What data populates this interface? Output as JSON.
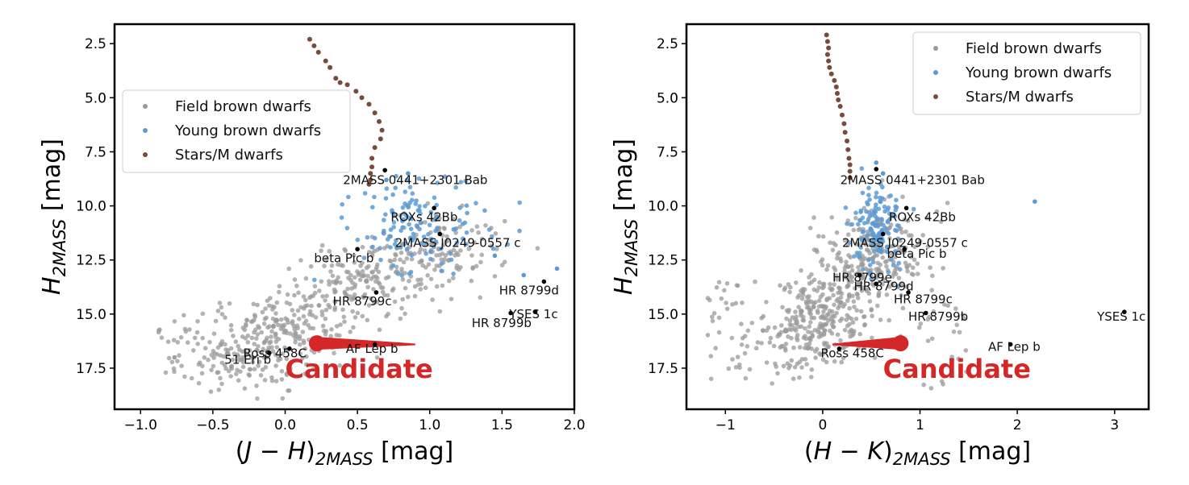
{
  "figure": {
    "y_label_main": "H",
    "y_label_sub": "2MASS",
    "y_label_unit": " [mag]"
  },
  "colors": {
    "field": "#9a9a9a",
    "young": "#5b9bd5",
    "stars": "#7a4a3a",
    "named": "#000000",
    "candidate": "#d62728"
  },
  "chart_data": [
    {
      "type": "scatter",
      "xlabel": "(J − H)2MASS [mag]",
      "xlabel_parts": {
        "open": "(",
        "a": "J",
        "op": " − ",
        "b": "H",
        "close": ")",
        "sub": "2MASS",
        "unit": " [mag]"
      },
      "ylabel": "H2MASS [mag]",
      "xlim": [
        -1.18,
        2.0
      ],
      "ylim": [
        19.4,
        1.6
      ],
      "y_inverted": true,
      "xticks": [
        "−1.0",
        "−0.5",
        "0.0",
        "0.5",
        "1.0",
        "1.5",
        "2.0"
      ],
      "xtick_values": [
        -1.0,
        -0.5,
        0.0,
        0.5,
        1.0,
        1.5,
        2.0
      ],
      "yticks": [
        "2.5",
        "5.0",
        "7.5",
        "10.0",
        "12.5",
        "15.0",
        "17.5"
      ],
      "ytick_values": [
        2.5,
        5.0,
        7.5,
        10.0,
        12.5,
        15.0,
        17.5
      ],
      "legend_position": "upper-left",
      "legend": [
        {
          "label": "Field brown dwarfs",
          "key": "field"
        },
        {
          "label": "Young brown dwarfs",
          "key": "young"
        },
        {
          "label": "Stars/M dwarfs",
          "key": "stars"
        }
      ],
      "stars_series": [
        [
          0.17,
          2.3
        ],
        [
          0.2,
          2.6
        ],
        [
          0.23,
          2.9
        ],
        [
          0.28,
          3.3
        ],
        [
          0.31,
          3.6
        ],
        [
          0.35,
          4.1
        ],
        [
          0.38,
          4.3
        ],
        [
          0.43,
          4.4
        ],
        [
          0.49,
          4.7
        ],
        [
          0.53,
          5.0
        ],
        [
          0.58,
          5.3
        ],
        [
          0.62,
          5.7
        ],
        [
          0.65,
          6.1
        ],
        [
          0.67,
          6.5
        ],
        [
          0.66,
          6.9
        ],
        [
          0.62,
          7.3
        ],
        [
          0.6,
          7.8
        ],
        [
          0.6,
          8.2
        ],
        [
          0.59,
          8.5
        ],
        [
          0.59,
          8.8
        ],
        [
          0.58,
          9.0
        ]
      ],
      "field_seed": 7,
      "young_seed": 11,
      "named_objects": [
        {
          "name": "2MASS 0441+2301 Bab",
          "x": 0.69,
          "y": 8.35,
          "lx": 0.4,
          "ly": 9.0
        },
        {
          "name": "ROXs 42Bb",
          "x": 1.03,
          "y": 10.1,
          "lx": 0.73,
          "ly": 10.7
        },
        {
          "name": "2MASS J0249-0557 c",
          "x": 1.07,
          "y": 11.3,
          "lx": 0.76,
          "ly": 11.9
        },
        {
          "name": "beta Pic b",
          "x": 0.5,
          "y": 12.0,
          "lx": 0.2,
          "ly": 12.6
        },
        {
          "name": "HR 8799d",
          "x": 1.79,
          "y": 13.5,
          "lx": 1.48,
          "ly": 14.1
        },
        {
          "name": "HR 8799c",
          "x": 0.63,
          "y": 14.0,
          "lx": 0.33,
          "ly": 14.6
        },
        {
          "name": "YSES 1c",
          "x": 1.73,
          "y": 14.9,
          "lx": 1.55,
          "ly": 15.2
        },
        {
          "name": "HR 8799b",
          "x": 1.56,
          "y": 14.95,
          "lx": 1.29,
          "ly": 15.6
        },
        {
          "name": "AF Lep b",
          "x": 0.62,
          "y": 16.4,
          "lx": 0.42,
          "ly": 16.8
        },
        {
          "name": "Ross 458C",
          "x": 0.03,
          "y": 16.6,
          "lx": -0.29,
          "ly": 17.0
        },
        {
          "name": "51 Eri b",
          "x": -0.11,
          "y": 16.8,
          "lx": -0.42,
          "ly": 17.3
        }
      ],
      "candidate": {
        "label": "Candidate",
        "x": 0.22,
        "y": 16.35,
        "tail_x": 0.9,
        "tail_y": 16.4,
        "lx": 0.0,
        "ly": 17.5
      }
    },
    {
      "type": "scatter",
      "xlabel": "(H − K)2MASS [mag]",
      "xlabel_parts": {
        "open": "(",
        "a": "H",
        "op": " − ",
        "b": "K",
        "close": ")",
        "sub": "2MASS",
        "unit": " [mag]"
      },
      "ylabel": "H2MASS [mag]",
      "xlim": [
        -1.4,
        3.35
      ],
      "ylim": [
        19.4,
        1.6
      ],
      "y_inverted": true,
      "xticks": [
        "−1",
        "0",
        "1",
        "2",
        "3"
      ],
      "xtick_values": [
        -1,
        0,
        1,
        2,
        3
      ],
      "yticks": [
        "2.5",
        "5.0",
        "7.5",
        "10.0",
        "12.5",
        "15.0",
        "17.5"
      ],
      "ytick_values": [
        2.5,
        5.0,
        7.5,
        10.0,
        12.5,
        15.0,
        17.5
      ],
      "legend_position": "upper-right",
      "legend": [
        {
          "label": "Field brown dwarfs",
          "key": "field"
        },
        {
          "label": "Young brown dwarfs",
          "key": "young"
        },
        {
          "label": "Stars/M dwarfs",
          "key": "stars"
        }
      ],
      "stars_series": [
        [
          0.04,
          2.1
        ],
        [
          0.05,
          2.4
        ],
        [
          0.06,
          2.7
        ],
        [
          0.05,
          3.0
        ],
        [
          0.06,
          3.3
        ],
        [
          0.07,
          3.6
        ],
        [
          0.09,
          3.9
        ],
        [
          0.12,
          4.2
        ],
        [
          0.14,
          4.5
        ],
        [
          0.15,
          4.8
        ],
        [
          0.16,
          5.1
        ],
        [
          0.18,
          5.4
        ],
        [
          0.2,
          5.8
        ],
        [
          0.22,
          6.2
        ],
        [
          0.23,
          6.6
        ],
        [
          0.25,
          7.0
        ],
        [
          0.26,
          7.4
        ],
        [
          0.27,
          7.8
        ],
        [
          0.28,
          8.1
        ],
        [
          0.28,
          8.4
        ],
        [
          0.28,
          8.7
        ]
      ],
      "field_seed": 23,
      "young_seed": 31,
      "named_objects": [
        {
          "name": "2MASS 0441+2301 Bab",
          "x": 0.55,
          "y": 8.3,
          "lx": 0.18,
          "ly": 9.0
        },
        {
          "name": "ROXs 42Bb",
          "x": 0.86,
          "y": 10.1,
          "lx": 0.68,
          "ly": 10.7
        },
        {
          "name": "2MASS J0249-0557 c",
          "x": 0.62,
          "y": 11.3,
          "lx": 0.2,
          "ly": 11.9
        },
        {
          "name": "beta Pic b",
          "x": 0.84,
          "y": 12.0,
          "lx": 0.66,
          "ly": 12.4
        },
        {
          "name": "HR 8799e",
          "x": 0.38,
          "y": 13.2,
          "lx": 0.1,
          "ly": 13.5
        },
        {
          "name": "HR 8799d",
          "x": 0.55,
          "y": 13.6,
          "lx": 0.32,
          "ly": 13.9
        },
        {
          "name": "HR 8799c",
          "x": 0.88,
          "y": 14.0,
          "lx": 0.73,
          "ly": 14.5
        },
        {
          "name": "HR 8799b",
          "x": 1.06,
          "y": 14.95,
          "lx": 0.88,
          "ly": 15.3
        },
        {
          "name": "YSES 1c",
          "x": 3.1,
          "y": 14.9,
          "lx": 2.82,
          "ly": 15.3
        },
        {
          "name": "AF Lep b",
          "x": 1.93,
          "y": 16.4,
          "lx": 1.7,
          "ly": 16.7
        },
        {
          "name": "Ross 458C",
          "x": 0.17,
          "y": 16.6,
          "lx": -0.02,
          "ly": 17.0
        }
      ],
      "candidate": {
        "label": "Candidate",
        "x": 0.8,
        "y": 16.35,
        "tail_x": 0.1,
        "tail_y": 16.4,
        "lx": 0.62,
        "ly": 17.5
      }
    }
  ]
}
